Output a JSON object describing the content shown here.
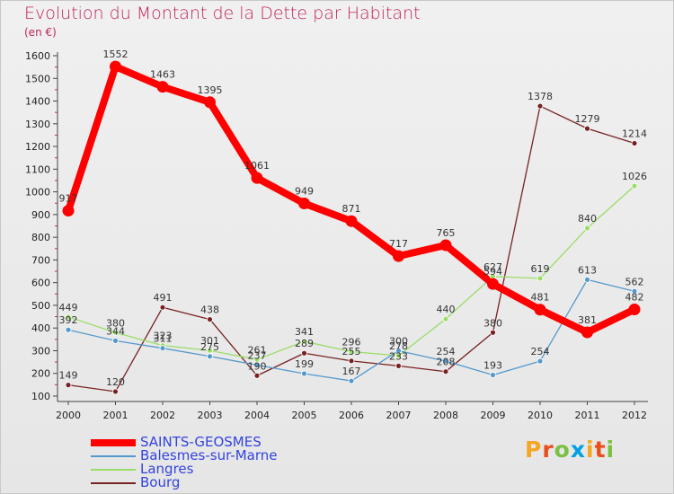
{
  "header": {
    "title": "Evolution du Montant de la Dette par Habitant",
    "unit": "(en €)"
  },
  "logo": {
    "letters": [
      "P",
      "r",
      "o",
      "x",
      "i",
      "t",
      "i"
    ],
    "colors": [
      "#f5a623",
      "#e94e1b",
      "#7ac143",
      "#00a0e3",
      "#f5a623",
      "#e94e1b",
      "#7ac143"
    ]
  },
  "chart_data": {
    "type": "line",
    "title": "Evolution du Montant de la Dette par Habitant",
    "ylabel": "(en €)",
    "xlabel": "",
    "x": [
      "2000",
      "2001",
      "2002",
      "2003",
      "2004",
      "2005",
      "2006",
      "2007",
      "2008",
      "2009",
      "2010",
      "2011",
      "2012"
    ],
    "ylim": [
      100,
      1600
    ],
    "yticks": [
      100,
      200,
      300,
      400,
      500,
      600,
      700,
      800,
      900,
      1000,
      1100,
      1200,
      1300,
      1400,
      1500,
      1600
    ],
    "grid": false,
    "legend_position": "bottom-left",
    "series": [
      {
        "name": "SAINTS-GEOSMES",
        "color": "#ff0000",
        "values": [
          917,
          1552,
          1463,
          1395,
          1061,
          949,
          871,
          717,
          765,
          594,
          481,
          381,
          482
        ]
      },
      {
        "name": "Balesmes-sur-Marne",
        "color": "#5599cc",
        "values": [
          392,
          344,
          311,
          275,
          237,
          199,
          167,
          300,
          254,
          193,
          254,
          613,
          562
        ]
      },
      {
        "name": "Langres",
        "color": "#99dd66",
        "values": [
          449,
          380,
          323,
          301,
          261,
          341,
          296,
          278,
          440,
          627,
          619,
          840,
          1026
        ]
      },
      {
        "name": "Bourg",
        "color": "#772222",
        "values": [
          149,
          120,
          491,
          438,
          190,
          289,
          255,
          233,
          208,
          380,
          1378,
          1279,
          1214
        ]
      }
    ]
  }
}
